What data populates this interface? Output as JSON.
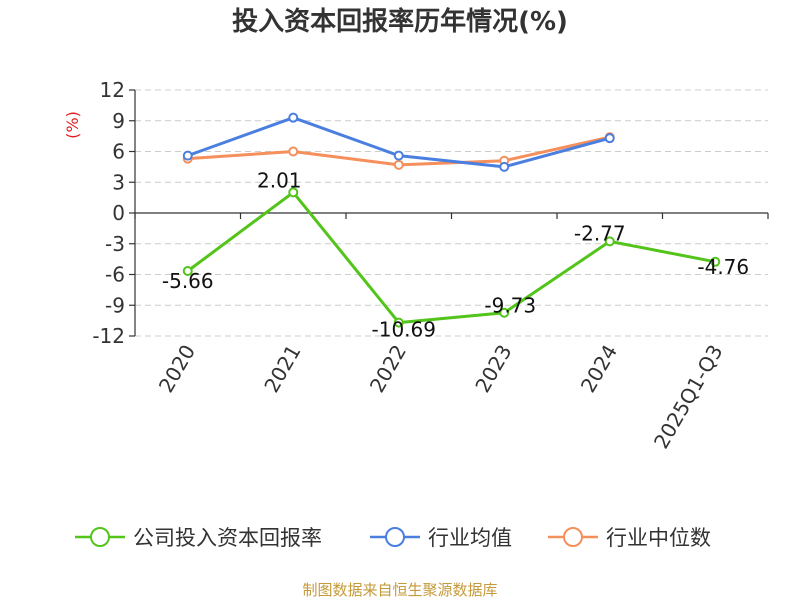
{
  "chart_data": {
    "type": "line",
    "title": "投入资本回报率历年情况(%)",
    "ylabel": "(%)",
    "categories": [
      "2020",
      "2021",
      "2022",
      "2023",
      "2024",
      "2025Q1-Q3"
    ],
    "ylim": [
      -12,
      12
    ],
    "yticks": [
      12,
      9,
      6,
      3,
      0,
      -3,
      -6,
      -9,
      -12
    ],
    "grid": true,
    "legend_position": "bottom",
    "series": [
      {
        "name": "公司投入资本回报率",
        "color": "#52c41a",
        "values": [
          -5.66,
          2.01,
          -10.69,
          -9.73,
          -2.77,
          -4.76
        ],
        "labels": [
          "-5.66",
          "2.01",
          "-10.69",
          "-9.73",
          "-2.77",
          "-4.76"
        ]
      },
      {
        "name": "行业均值",
        "color": "#4a7fe0",
        "values": [
          5.6,
          9.3,
          5.6,
          4.5,
          7.3,
          null
        ]
      },
      {
        "name": "行业中位数",
        "color": "#f58f5c",
        "values": [
          5.3,
          6.0,
          4.7,
          5.1,
          7.4,
          null
        ]
      }
    ]
  },
  "source": "制图数据来自恒生聚源数据库"
}
